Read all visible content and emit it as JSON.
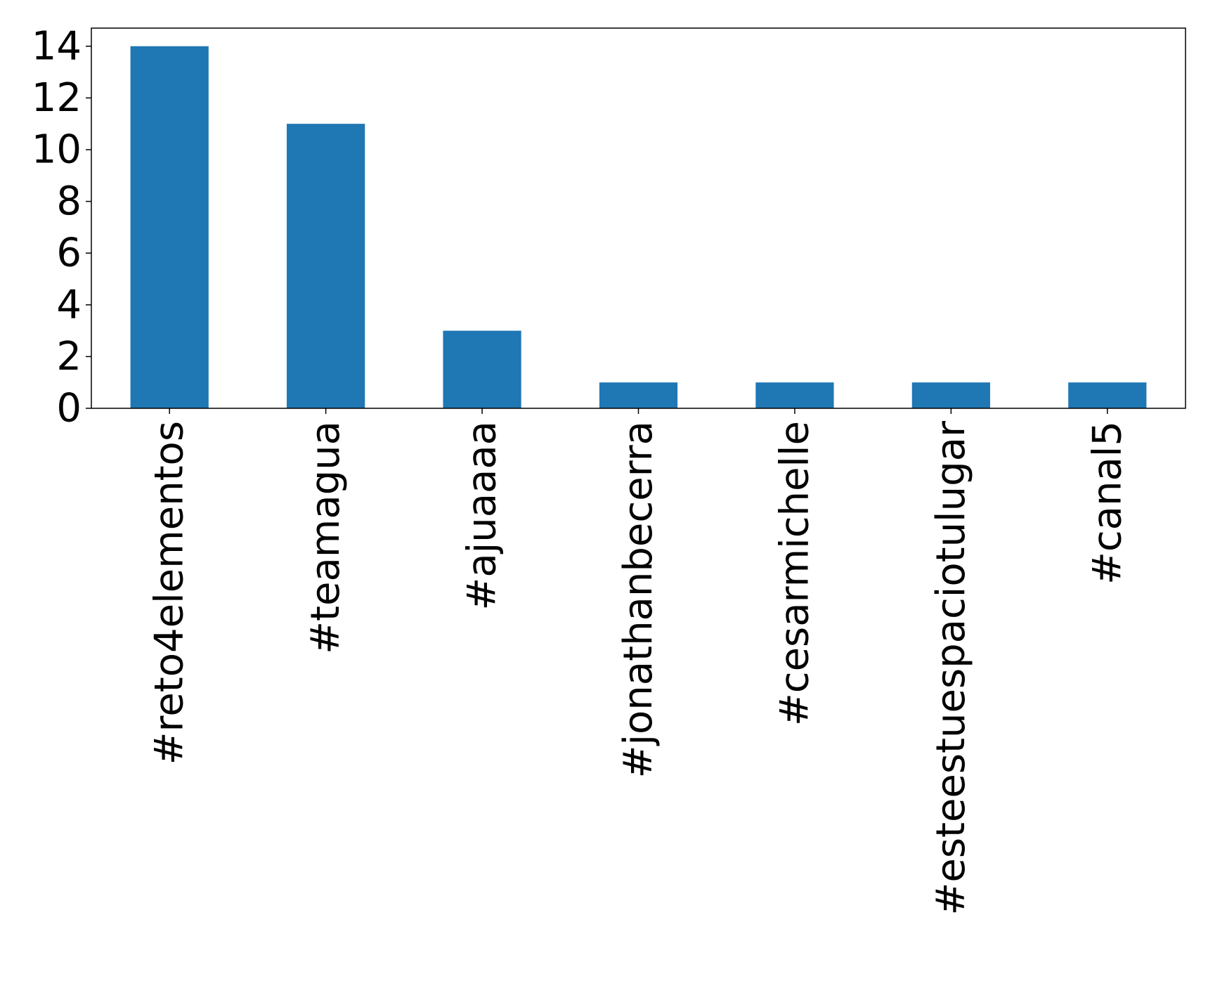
{
  "chart_data": {
    "type": "bar",
    "categories": [
      "#reto4elementos",
      "#teamagua",
      "#ajuaaaa",
      "#jonathanbecerra",
      "#cesarmichelle",
      "#esteestuespaciotulugar",
      "#canal5"
    ],
    "values": [
      14,
      11,
      3,
      1,
      1,
      1,
      1
    ],
    "ylim": [
      0,
      14.7
    ],
    "yticks": [
      0,
      2,
      4,
      6,
      8,
      10,
      12,
      14
    ],
    "title": "",
    "xlabel": "",
    "ylabel": "",
    "grid": false,
    "legend": "none",
    "bar_color": "#1f77b4"
  }
}
